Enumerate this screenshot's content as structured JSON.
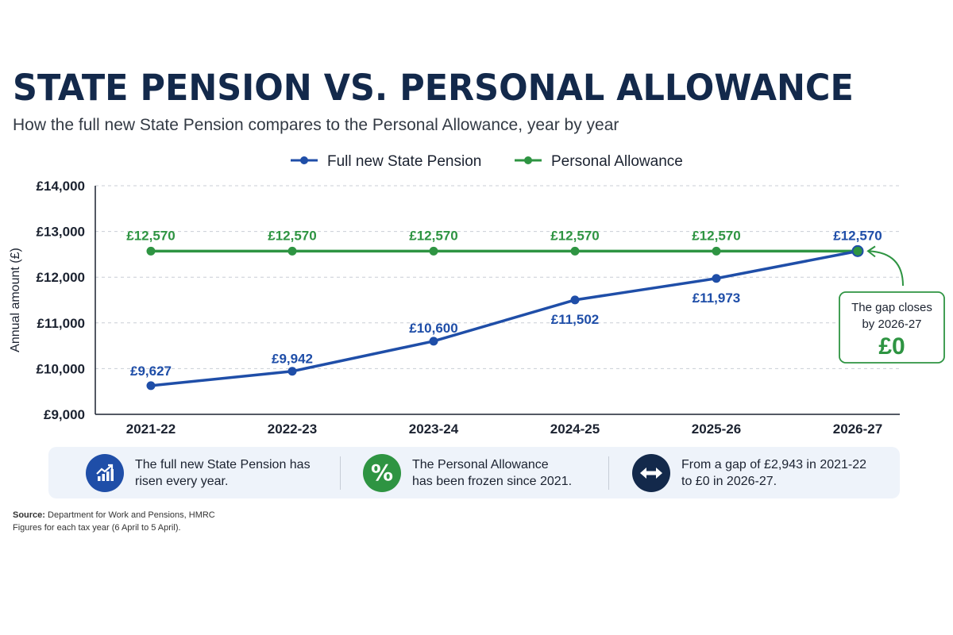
{
  "title": "STATE PENSION VS. PERSONAL ALLOWANCE",
  "subtitle": "How the full new State Pension compares to the Personal Allowance, year by year",
  "chart_data": {
    "type": "line",
    "categories": [
      "2021-22",
      "2022-23",
      "2023-24",
      "2024-25",
      "2025-26",
      "2026-27"
    ],
    "series": [
      {
        "name": "Full new State Pension",
        "color": "#1f4ea8",
        "values": [
          9627,
          9942,
          10600,
          11502,
          11973,
          12570
        ],
        "labels": [
          "£9,627",
          "£9,942",
          "£10,600",
          "£11,502",
          "£11,973",
          "£12,570"
        ]
      },
      {
        "name": "Personal Allowance",
        "color": "#2e9442",
        "values": [
          12570,
          12570,
          12570,
          12570,
          12570,
          12570
        ],
        "labels": [
          "£12,570",
          "£12,570",
          "£12,570",
          "£12,570",
          "£12,570",
          "£12,570"
        ]
      }
    ],
    "ylabel": "Annual amount (£)",
    "ylim": [
      9000,
      14000
    ],
    "yticks": [
      9000,
      10000,
      11000,
      12000,
      13000,
      14000
    ],
    "ytick_labels": [
      "£9,000",
      "£10,000",
      "£11,000",
      "£12,000",
      "£13,000",
      "£14,000"
    ],
    "grid": true,
    "legend_position": "top-center",
    "annotation": {
      "line1": "The gap closes",
      "line2": "by 2026-27",
      "value": "£0"
    }
  },
  "info": [
    {
      "icon": "rising-chart-icon",
      "line1": "The full new State Pension has",
      "line2": "risen every year.",
      "color": "#1f4ea8"
    },
    {
      "icon": "percent-icon",
      "line1": "The Personal Allowance",
      "line2": "has been frozen since 2021.",
      "color": "#2e9442"
    },
    {
      "icon": "double-arrow-icon",
      "line1": "From a gap of £2,943 in 2021-22",
      "line2": "to £0 in 2026-27.",
      "color": "#13294b"
    }
  ],
  "source": {
    "label": "Source:",
    "text": "Department for Work and Pensions, HMRC",
    "note": "Figures for each tax year (6 April to 5 April)."
  }
}
